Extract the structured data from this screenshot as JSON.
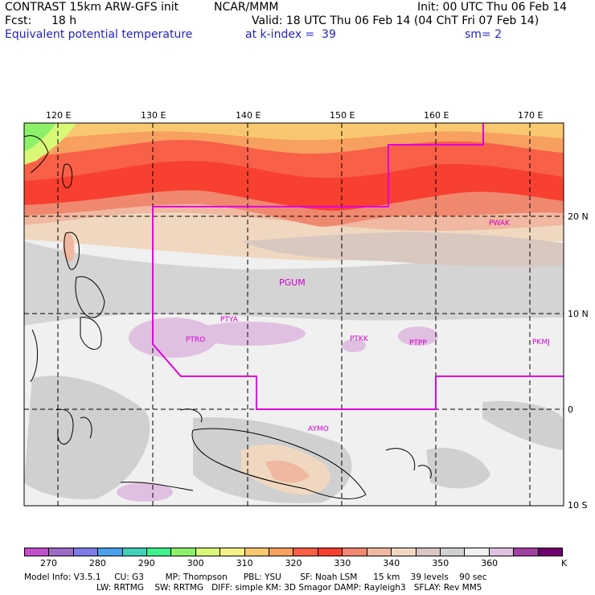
{
  "header": {
    "model": "CONTRAST 15km ARW-GFS init",
    "org": "NCAR/MMM",
    "init": "Init: 00 UTC Thu 06 Feb 14",
    "fcst_label": "Fcst:",
    "fcst_value": "18 h",
    "valid": "Valid: 18 UTC Thu 06 Feb 14 (04 ChT Fri 07 Feb 14)",
    "field": "Equivalent potential temperature",
    "kindex": "at k-index =  39",
    "smoothing": "sm= 2"
  },
  "map": {
    "lon_labels": [
      "120 E",
      "130 E",
      "140 E",
      "150 E",
      "160 E",
      "170 E"
    ],
    "lat_labels": [
      "20 N",
      "10 N",
      "0",
      "10 S"
    ],
    "stations": [
      "PWAK",
      "PGUM",
      "PTYA",
      "PTRO",
      "PTKK",
      "PTPP",
      "PKMJ",
      "AYMO"
    ]
  },
  "colorbar": {
    "colors": [
      "#c050c8",
      "#9c6bc4",
      "#7c7ce4",
      "#4aa0e8",
      "#40d0b8",
      "#40f08c",
      "#8cf068",
      "#d8f878",
      "#f8f088",
      "#f8c870",
      "#f8a060",
      "#f86048",
      "#f84030",
      "#f08870",
      "#f0b8a0",
      "#f0d8c0",
      "#d8c8c0",
      "#d0d0d0",
      "#f0f0f0",
      "#e0c0e0",
      "#a040a0",
      "#700070"
    ],
    "ticks": [
      "270",
      "280",
      "290",
      "300",
      "310",
      "320",
      "330",
      "340",
      "350",
      "360"
    ],
    "unit": "K"
  },
  "footer": {
    "line1": "Model Info: V3.5.1     CU: G3        MP: Thompson      PBL: YSU       SF: Noah LSM      15 km    39 levels    90 sec",
    "line2": "LW: RRTMG    SW: RRTMG   DIFF: simple KM: 3D Smagor DAMP: Rayleigh3   SFLAY: Rev MM5"
  }
}
